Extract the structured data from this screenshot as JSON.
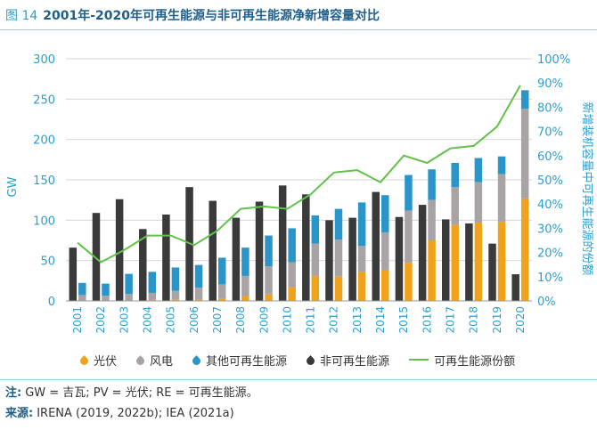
{
  "figure": {
    "label": "图 14",
    "title": "2001年-2020年可再生能源与非可再生能源净新增容量对比",
    "note_key": "注:",
    "note_text": "GW = 吉瓦; PV = 光伏; RE = 可再生能源。",
    "source_key": "来源:",
    "source_text": "IRENA (2019, 2022b); IEA (2021a)"
  },
  "colors": {
    "solar": "#f0a31a",
    "wind": "#a8a3a5",
    "other_re": "#2a95c8",
    "non_re": "#3a3a3a",
    "share_line": "#62c24a",
    "axis_text": "#2a9fd0",
    "grid": "#d6d6d6"
  },
  "chart_data": {
    "type": "bar",
    "stacked_group": [
      "光伏",
      "风电",
      "其他可再生能源"
    ],
    "categories": [
      "2001",
      "2002",
      "2003",
      "2004",
      "2005",
      "2006",
      "2007",
      "2008",
      "2009",
      "2010",
      "2011",
      "2012",
      "2013",
      "2014",
      "2015",
      "2016",
      "2017",
      "2018",
      "2019",
      "2020"
    ],
    "series": [
      {
        "name": "光伏",
        "axis": "left",
        "values": [
          0.3,
          0.4,
          0.5,
          1.0,
          1.4,
          1.5,
          2.5,
          6,
          8,
          17,
          31,
          30,
          36,
          38,
          47,
          75,
          94,
          97,
          98,
          127
        ]
      },
      {
        "name": "风电",
        "axis": "left",
        "values": [
          7,
          6,
          8,
          9,
          11,
          15,
          18,
          25,
          35,
          31,
          40,
          46,
          32,
          47,
          65,
          50,
          47,
          50,
          59,
          111
        ]
      },
      {
        "name": "其他可再生能源",
        "axis": "left",
        "values": [
          15,
          15,
          25,
          26,
          29,
          28,
          33,
          35,
          38,
          42,
          35,
          38,
          54,
          46,
          44,
          38,
          30,
          30,
          22,
          23
        ]
      },
      {
        "name": "非可再生能源",
        "axis": "left",
        "values": [
          66,
          109,
          126,
          89,
          107,
          141,
          124,
          103,
          123,
          143,
          132,
          100,
          103,
          135,
          104,
          119,
          101,
          96,
          71,
          33
        ]
      },
      {
        "name": "可再生能源份额",
        "axis": "right",
        "type": "line",
        "values": [
          0.24,
          0.16,
          0.21,
          0.27,
          0.27,
          0.23,
          0.29,
          0.38,
          0.39,
          0.38,
          0.44,
          0.53,
          0.54,
          0.49,
          0.6,
          0.57,
          0.63,
          0.64,
          0.72,
          0.89
        ]
      }
    ],
    "ylabel": "GW",
    "ylim": [
      0,
      300
    ],
    "yticks": [
      "0",
      "50",
      "100",
      "150",
      "200",
      "250",
      "300"
    ],
    "y2label": "新增装机容量中可再生能源的份额",
    "y2lim": [
      0,
      1
    ],
    "y2ticks": [
      "0%",
      "10%",
      "20%",
      "30%",
      "40%",
      "50%",
      "60%",
      "70%",
      "80%",
      "90%",
      "100%"
    ],
    "grid": true,
    "legend": "bottom"
  }
}
